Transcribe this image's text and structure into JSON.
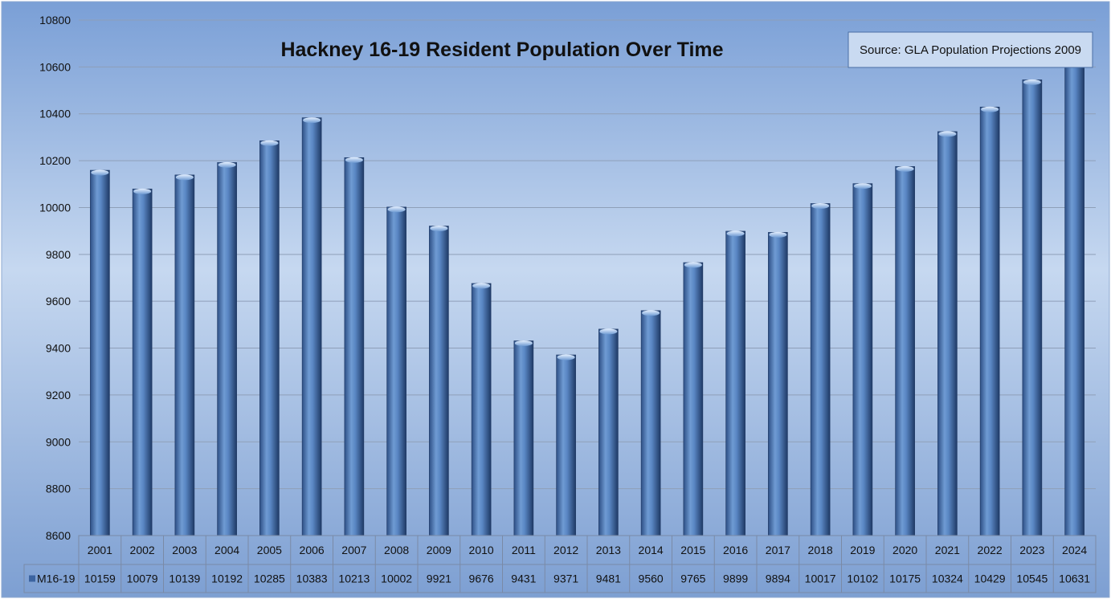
{
  "chart_data": {
    "type": "bar",
    "title": "Hackney 16-19 Resident Population Over Time",
    "source_note": "Source: GLA Population Projections 2009",
    "ylim": [
      8600,
      10800
    ],
    "yticks": [
      8600,
      8800,
      9000,
      9200,
      9400,
      9600,
      9800,
      10000,
      10200,
      10400,
      10600,
      10800
    ],
    "grid": true,
    "categories": [
      "2001",
      "2002",
      "2003",
      "2004",
      "2005",
      "2006",
      "2007",
      "2008",
      "2009",
      "2010",
      "2011",
      "2012",
      "2013",
      "2014",
      "2015",
      "2016",
      "2017",
      "2018",
      "2019",
      "2020",
      "2021",
      "2022",
      "2023",
      "2024"
    ],
    "series": [
      {
        "name": "M16-19",
        "values": [
          10159,
          10079,
          10139,
          10192,
          10285,
          10383,
          10213,
          10002,
          9921,
          9676,
          9431,
          9371,
          9481,
          9560,
          9765,
          9899,
          9894,
          10017,
          10102,
          10175,
          10324,
          10429,
          10545,
          10631
        ]
      }
    ],
    "data_table": true,
    "colors": {
      "bar": "#4f81bd",
      "bar_dark": "#27477a",
      "bar_light": "#9cc0ea",
      "background_top": "#7fa3d8",
      "background_mid": "#c3d6ef",
      "background_bottom": "#7b9fd3"
    }
  }
}
